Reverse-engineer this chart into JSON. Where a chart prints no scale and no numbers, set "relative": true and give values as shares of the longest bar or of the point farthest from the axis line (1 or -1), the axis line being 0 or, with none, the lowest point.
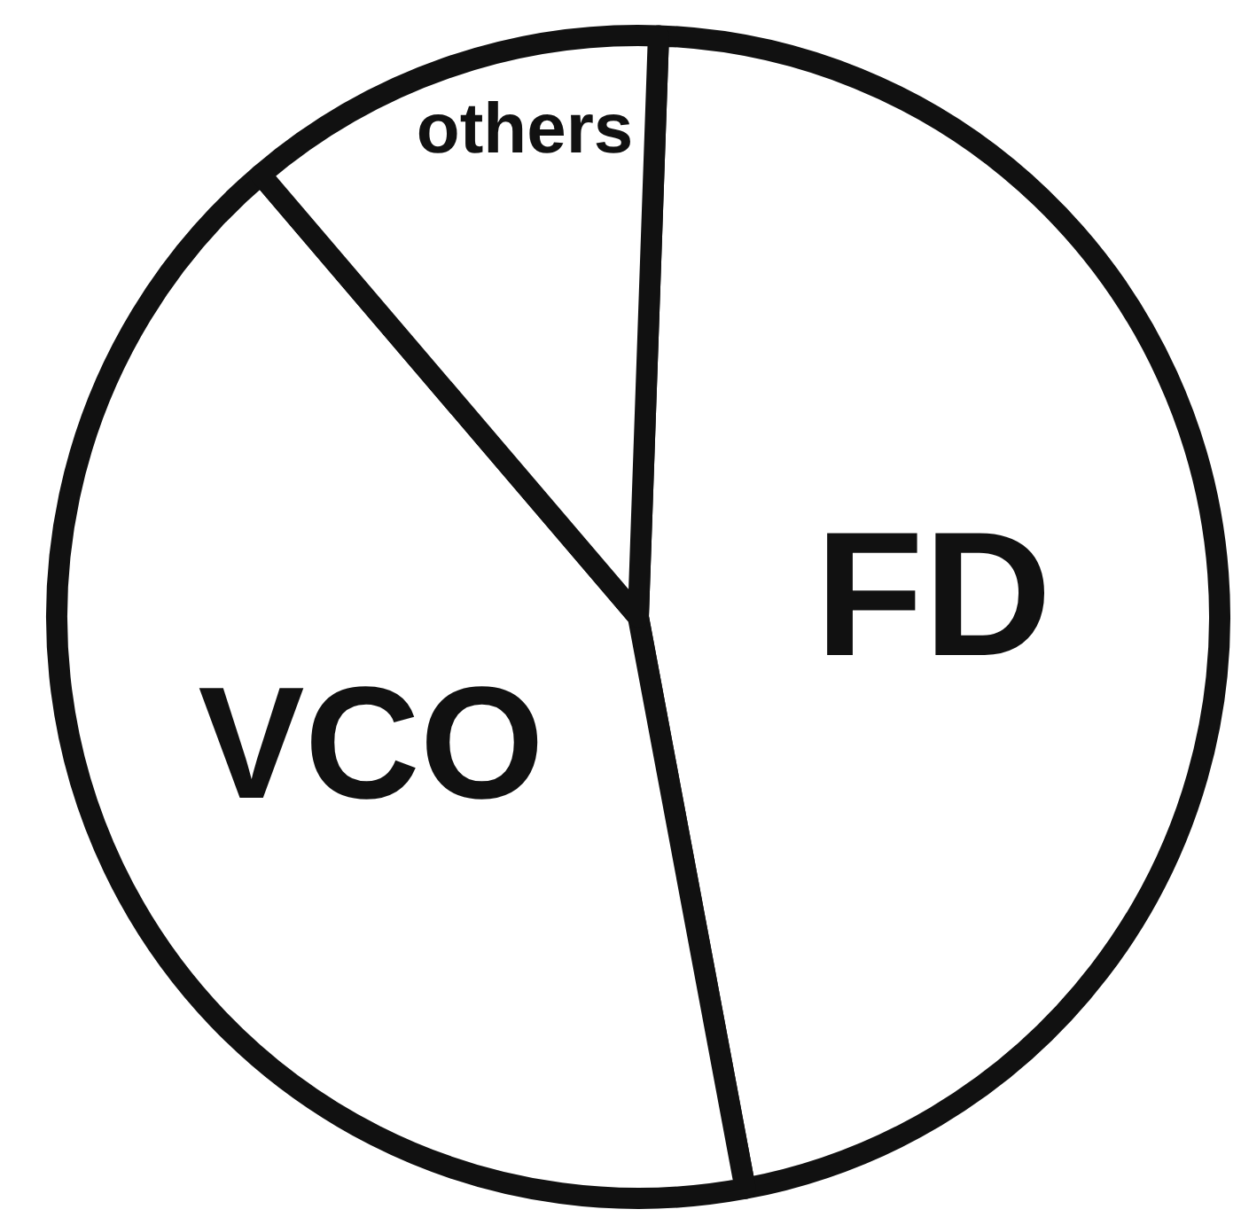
{
  "chart_data": {
    "type": "pie",
    "relative": true,
    "categories": [
      "FD",
      "VCO",
      "others"
    ],
    "values": [
      46.5,
      41.7,
      11.8
    ],
    "colors": [
      "#ffffff",
      "#ffffff",
      "#ffffff"
    ]
  }
}
